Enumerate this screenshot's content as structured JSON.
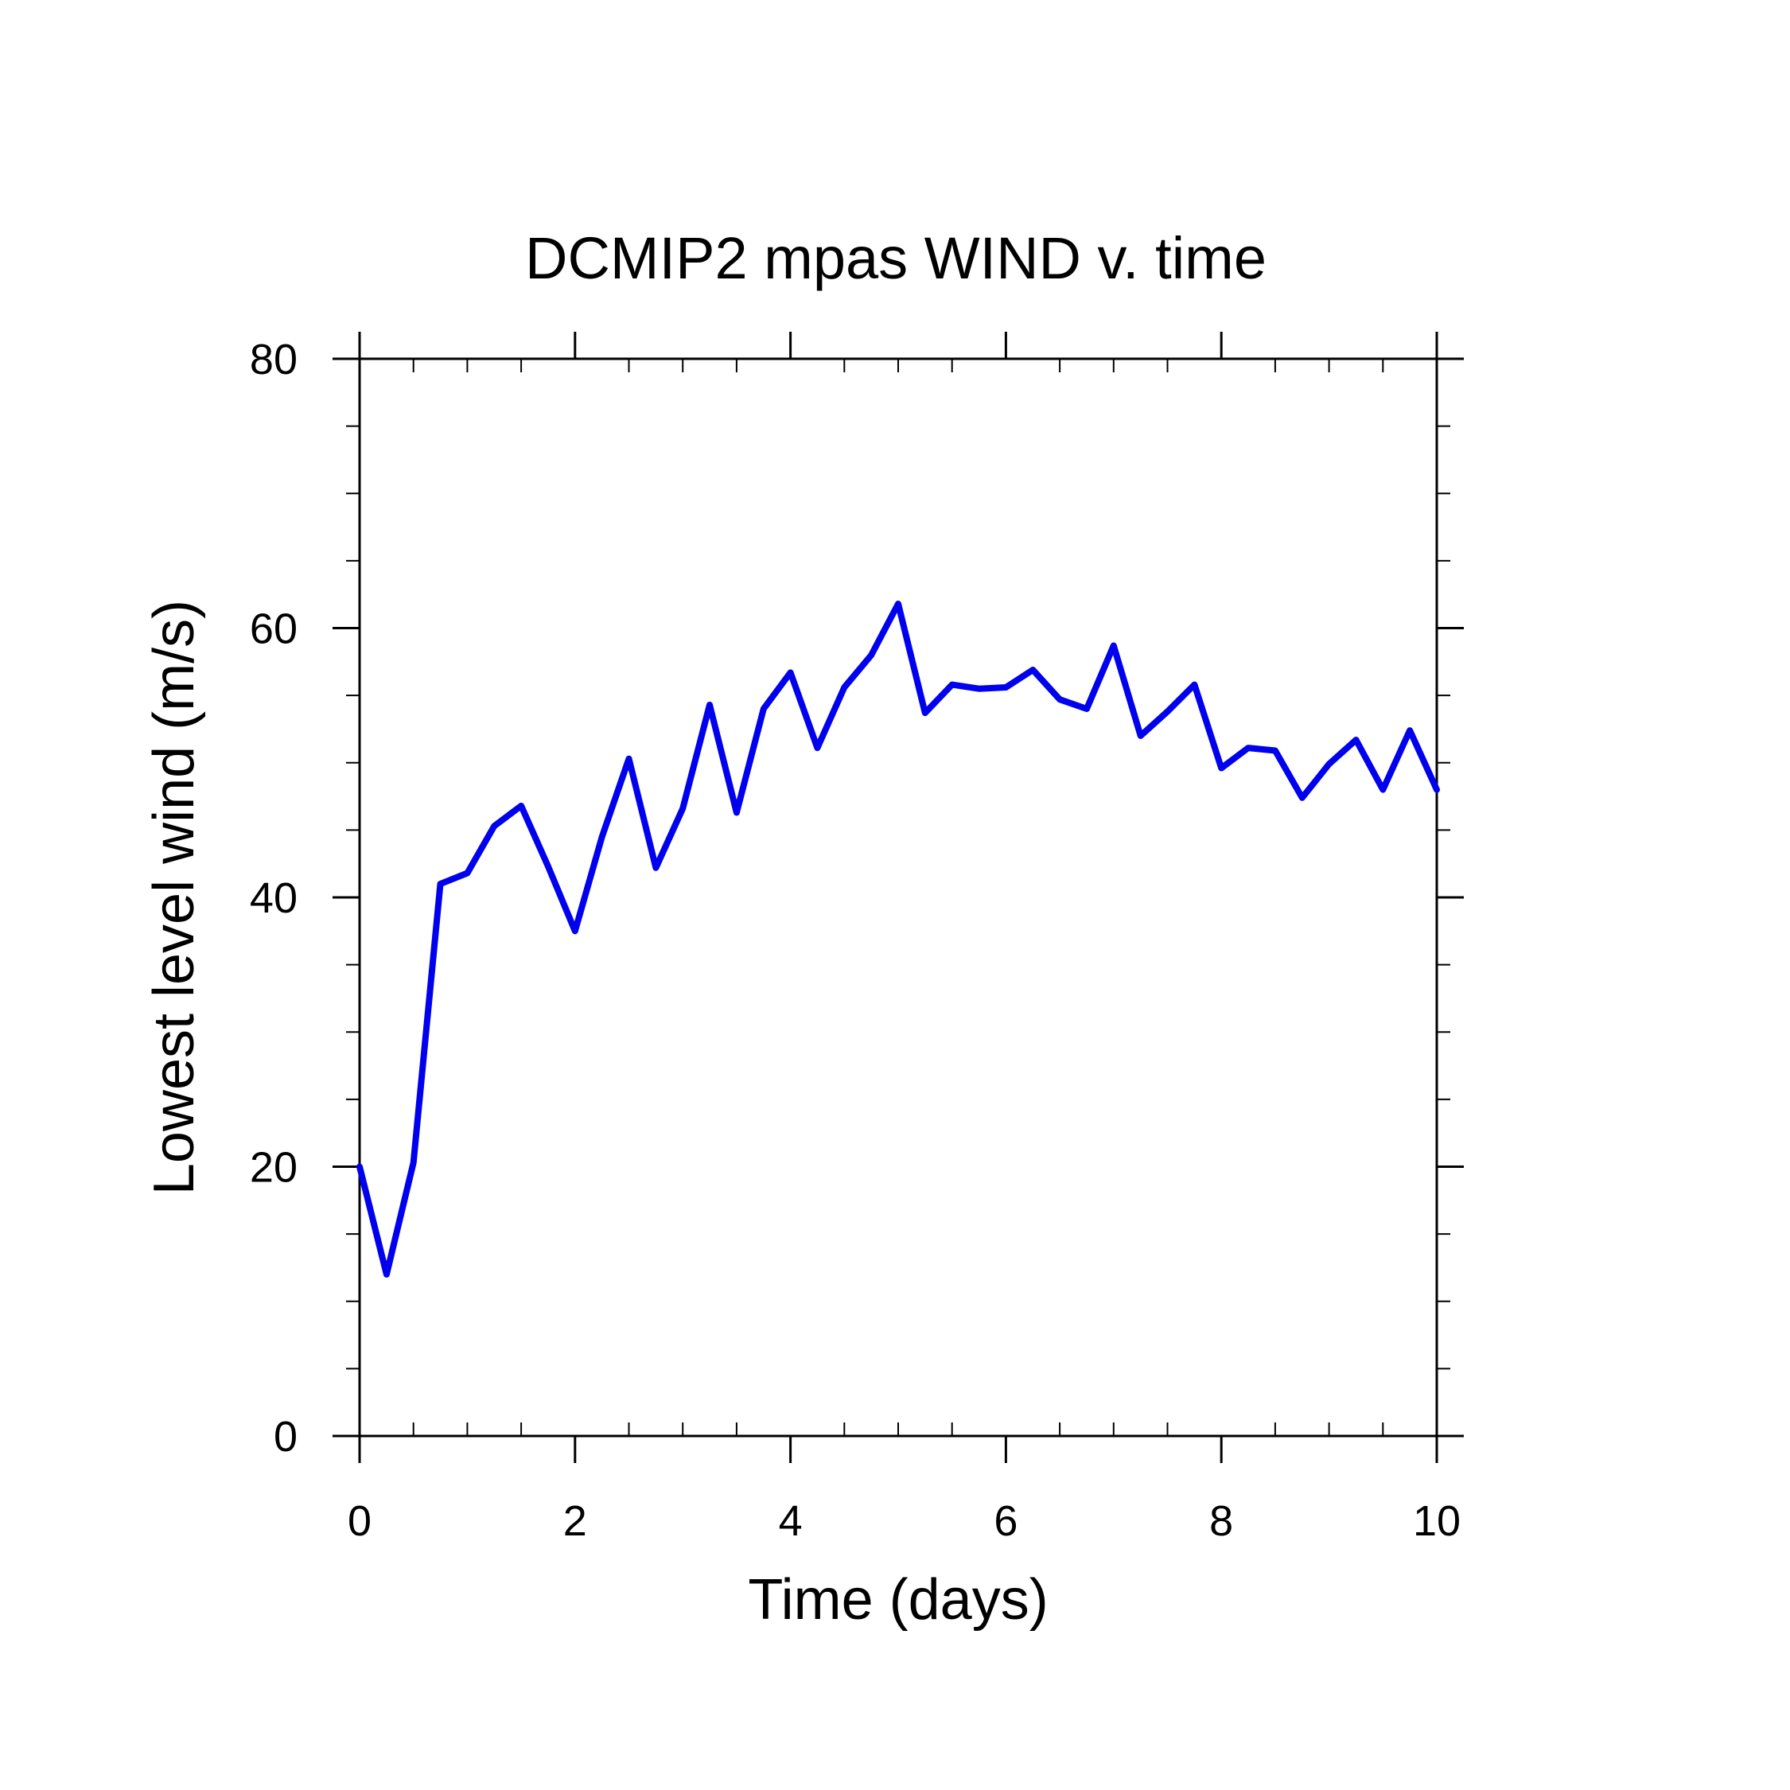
{
  "chart_data": {
    "type": "line",
    "title": "DCMIP2 mpas WIND v. time",
    "xlabel": "Time (days)",
    "ylabel": "Lowest level wind (m/s)",
    "xlim": [
      0,
      10
    ],
    "ylim": [
      0,
      80
    ],
    "x_ticks": [
      0,
      2,
      4,
      6,
      8,
      10
    ],
    "y_ticks": [
      0,
      20,
      40,
      60,
      80
    ],
    "x_minor_step": 0.5,
    "y_minor_step": 5,
    "grid": false,
    "line_color": "#0000ee",
    "series": [
      {
        "x": [
          0,
          0.25,
          0.5,
          0.75,
          1.0,
          1.25,
          1.5,
          1.75,
          2.0,
          2.25,
          2.5,
          2.75,
          3.0,
          3.25,
          3.5,
          3.75,
          4.0,
          4.25,
          4.5,
          4.75,
          5.0,
          5.25,
          5.5,
          5.75,
          6.0,
          6.25,
          6.5,
          6.75,
          7.0,
          7.25,
          7.5,
          7.75,
          8.0,
          8.25,
          8.5,
          8.75,
          9.0,
          9.25,
          9.5,
          9.75,
          10.0
        ],
        "values": [
          20.0,
          12.0,
          20.3,
          41.0,
          41.8,
          45.3,
          46.8,
          42.3,
          37.5,
          44.5,
          50.3,
          42.2,
          46.6,
          54.3,
          46.3,
          54.0,
          56.7,
          51.1,
          55.6,
          58.0,
          61.8,
          53.7,
          55.8,
          55.5,
          55.6,
          56.9,
          54.7,
          54.0,
          58.7,
          52.0,
          53.8,
          55.8,
          49.6,
          51.1,
          50.9,
          47.4,
          49.9,
          51.7,
          48.0,
          52.4,
          48.0
        ]
      }
    ]
  }
}
